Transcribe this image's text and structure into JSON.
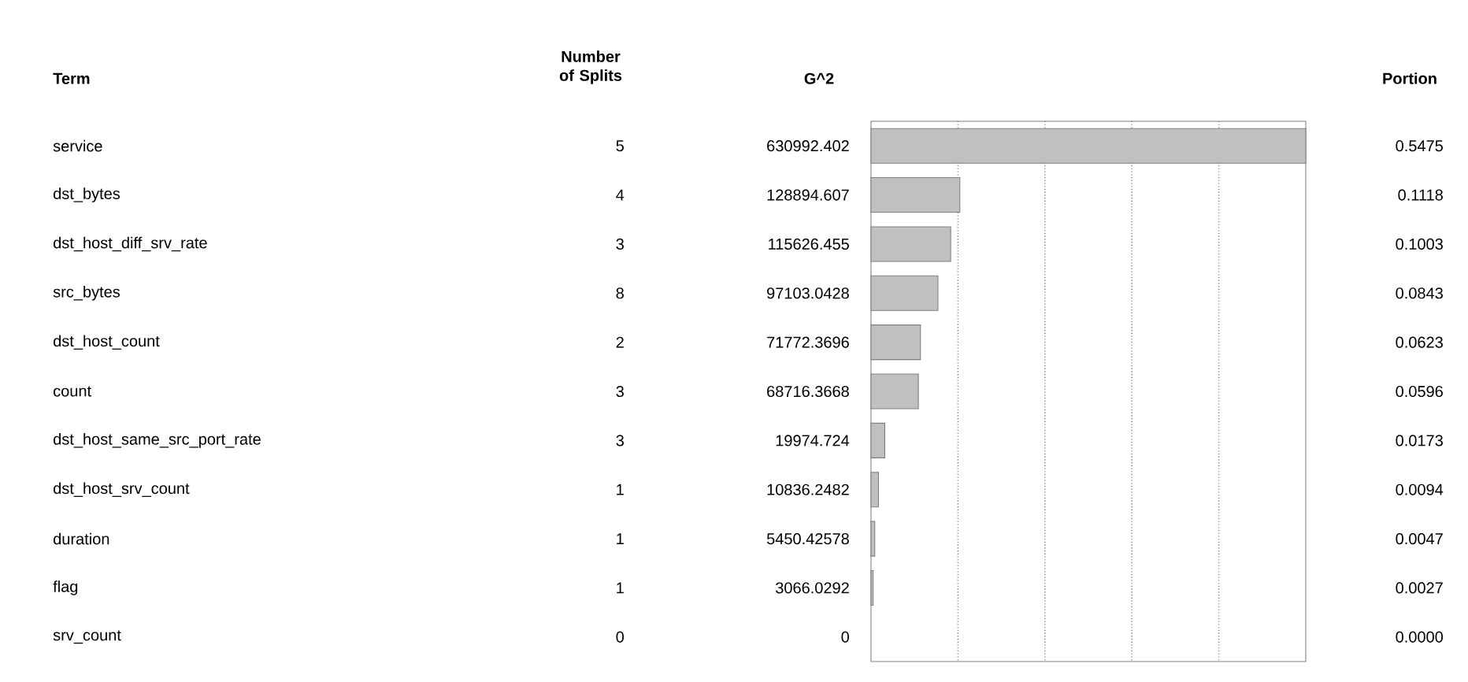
{
  "chart_data": [
    {
      "type": "bar",
      "orientation": "horizontal",
      "title": "G^2",
      "ylabel": "Term",
      "categories": [
        "service",
        "dst_bytes",
        "dst_host_diff_srv_rate",
        "src_bytes",
        "dst_host_count",
        "count",
        "dst_host_same_src_port_rate",
        "dst_host_srv_count",
        "duration",
        "flag",
        "srv_count"
      ],
      "values": [
        630992.402,
        128894.607,
        115626.455,
        97103.0428,
        71772.3696,
        68716.3668,
        19974.724,
        10836.2482,
        5450.42578,
        3066.0292,
        0
      ],
      "value_labels": [
        "630992.402",
        "128894.607",
        "115626.455",
        "97103.0428",
        "71772.3696",
        "68716.3668",
        "19974.724",
        "10836.2482",
        "5450.42578",
        "3066.0292",
        "0"
      ],
      "color": "#c0c0c0",
      "xlim": [
        0,
        630992.402
      ],
      "xticks": [
        {
          "value": 126198.4804,
          "label": null
        },
        {
          "value": 252396.9608,
          "label": null
        },
        {
          "value": 378595.4412,
          "label": null
        },
        {
          "value": 504793.9216,
          "label": null
        }
      ],
      "grid": "x",
      "tick_labels": "y"
    },
    {
      "type": "other",
      "title": "Number of Splits",
      "values": [
        5,
        4,
        3,
        8,
        2,
        3,
        3,
        1,
        1,
        1,
        0
      ],
      "value_labels": [
        "5",
        "4",
        "3",
        "8",
        "2",
        "3",
        "3",
        "1",
        "1",
        "1",
        "0"
      ]
    },
    {
      "type": "other",
      "title": "Portion",
      "values": [
        0.5475,
        0.1118,
        0.1003,
        0.0843,
        0.0623,
        0.0596,
        0.0173,
        0.0094,
        0.0047,
        0.0027,
        0
      ],
      "value_labels": [
        "0.5475",
        "0.1118",
        "0.1003",
        "0.0843",
        "0.0623",
        "0.0596",
        "0.0173",
        "0.0094",
        "0.0047",
        "0.0027",
        "0.0000"
      ]
    }
  ]
}
